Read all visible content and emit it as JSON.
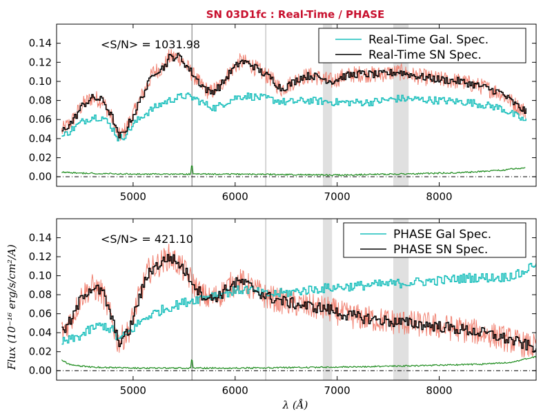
{
  "chart_data": {
    "title": "SN 03D1fc : Real-Time / PHASE",
    "xlabel": "λ (Å)",
    "ylabel": "Flux (10⁻¹⁶ erg/s/cm²/A)",
    "colors": {
      "gal": "#17bebb",
      "sn": "#000000",
      "raw": "#f08070",
      "err": "#1a8a1a",
      "grey": "#e0e0e0"
    },
    "panels": [
      {
        "type": "line",
        "annotation": "<S/N> = 1031.98",
        "xlim": [
          4250,
          8950
        ],
        "ylim": [
          -0.01,
          0.16
        ],
        "xticks": [
          5000,
          6000,
          7000,
          8000
        ],
        "yticks": [
          "0.00",
          "0.02",
          "0.04",
          "0.06",
          "0.08",
          "0.10",
          "0.12",
          "0.14"
        ],
        "legend": [
          "Real-Time Gal. Spec.",
          "Real-Time SN Spec."
        ],
        "legend_position": "top-right",
        "sn_knots": [
          [
            4300,
            0.048
          ],
          [
            4400,
            0.058
          ],
          [
            4500,
            0.075
          ],
          [
            4600,
            0.083
          ],
          [
            4700,
            0.08
          ],
          [
            4800,
            0.06
          ],
          [
            4850,
            0.042
          ],
          [
            4900,
            0.045
          ],
          [
            5000,
            0.065
          ],
          [
            5100,
            0.088
          ],
          [
            5200,
            0.11
          ],
          [
            5300,
            0.115
          ],
          [
            5350,
            0.125
          ],
          [
            5450,
            0.126
          ],
          [
            5550,
            0.112
          ],
          [
            5650,
            0.098
          ],
          [
            5750,
            0.088
          ],
          [
            5850,
            0.095
          ],
          [
            5950,
            0.11
          ],
          [
            6050,
            0.121
          ],
          [
            6150,
            0.118
          ],
          [
            6250,
            0.11
          ],
          [
            6350,
            0.103
          ],
          [
            6450,
            0.092
          ],
          [
            6550,
            0.098
          ],
          [
            6650,
            0.105
          ],
          [
            6750,
            0.106
          ],
          [
            6850,
            0.103
          ],
          [
            6950,
            0.1
          ],
          [
            7050,
            0.105
          ],
          [
            7200,
            0.108
          ],
          [
            7400,
            0.107
          ],
          [
            7600,
            0.11
          ],
          [
            7800,
            0.105
          ],
          [
            8000,
            0.102
          ],
          [
            8200,
            0.1
          ],
          [
            8400,
            0.095
          ],
          [
            8600,
            0.088
          ],
          [
            8750,
            0.075
          ],
          [
            8850,
            0.068
          ]
        ],
        "gal_knots": [
          [
            4300,
            0.042
          ],
          [
            4400,
            0.05
          ],
          [
            4500,
            0.058
          ],
          [
            4600,
            0.063
          ],
          [
            4700,
            0.062
          ],
          [
            4800,
            0.05
          ],
          [
            4850,
            0.04
          ],
          [
            4900,
            0.042
          ],
          [
            5000,
            0.055
          ],
          [
            5100,
            0.065
          ],
          [
            5200,
            0.072
          ],
          [
            5300,
            0.078
          ],
          [
            5400,
            0.082
          ],
          [
            5500,
            0.085
          ],
          [
            5600,
            0.082
          ],
          [
            5700,
            0.076
          ],
          [
            5800,
            0.072
          ],
          [
            5900,
            0.078
          ],
          [
            6000,
            0.083
          ],
          [
            6100,
            0.085
          ],
          [
            6300,
            0.082
          ],
          [
            6500,
            0.078
          ],
          [
            6700,
            0.08
          ],
          [
            7000,
            0.078
          ],
          [
            7300,
            0.078
          ],
          [
            7600,
            0.082
          ],
          [
            8000,
            0.08
          ],
          [
            8300,
            0.078
          ],
          [
            8600,
            0.072
          ],
          [
            8850,
            0.058
          ]
        ],
        "err_knots": [
          [
            4300,
            0.004
          ],
          [
            4500,
            0.003
          ],
          [
            5000,
            0.002
          ],
          [
            6000,
            0.002
          ],
          [
            7000,
            0.001
          ],
          [
            7500,
            0.002
          ],
          [
            8000,
            0.003
          ],
          [
            8300,
            0.004
          ],
          [
            8600,
            0.006
          ],
          [
            8850,
            0.009
          ]
        ],
        "noise": {
          "sn": 0.004,
          "raw": 0.009,
          "gal": 0.004
        }
      },
      {
        "type": "line",
        "annotation": "<S/N> = 421.10",
        "xlim": [
          4250,
          8950
        ],
        "ylim": [
          -0.01,
          0.16
        ],
        "xticks": [
          5000,
          6000,
          7000,
          8000
        ],
        "yticks": [
          "0.00",
          "0.02",
          "0.04",
          "0.06",
          "0.08",
          "0.10",
          "0.12",
          "0.14"
        ],
        "legend": [
          "PHASE Gal Spec.",
          "PHASE SN Spec."
        ],
        "legend_position": "top-right",
        "sn_knots": [
          [
            4300,
            0.04
          ],
          [
            4400,
            0.055
          ],
          [
            4500,
            0.08
          ],
          [
            4600,
            0.088
          ],
          [
            4700,
            0.082
          ],
          [
            4800,
            0.05
          ],
          [
            4850,
            0.03
          ],
          [
            4950,
            0.04
          ],
          [
            5050,
            0.075
          ],
          [
            5150,
            0.105
          ],
          [
            5250,
            0.112
          ],
          [
            5350,
            0.12
          ],
          [
            5450,
            0.112
          ],
          [
            5550,
            0.098
          ],
          [
            5650,
            0.082
          ],
          [
            5750,
            0.075
          ],
          [
            5850,
            0.08
          ],
          [
            5950,
            0.09
          ],
          [
            6050,
            0.094
          ],
          [
            6150,
            0.088
          ],
          [
            6300,
            0.078
          ],
          [
            6500,
            0.072
          ],
          [
            6700,
            0.068
          ],
          [
            6900,
            0.065
          ],
          [
            7100,
            0.058
          ],
          [
            7300,
            0.055
          ],
          [
            7500,
            0.052
          ],
          [
            7700,
            0.05
          ],
          [
            7900,
            0.048
          ],
          [
            8100,
            0.045
          ],
          [
            8300,
            0.042
          ],
          [
            8500,
            0.038
          ],
          [
            8700,
            0.032
          ],
          [
            8900,
            0.025
          ]
        ],
        "gal_knots": [
          [
            4300,
            0.03
          ],
          [
            4400,
            0.033
          ],
          [
            4500,
            0.038
          ],
          [
            4600,
            0.045
          ],
          [
            4700,
            0.048
          ],
          [
            4800,
            0.042
          ],
          [
            4850,
            0.032
          ],
          [
            4950,
            0.04
          ],
          [
            5050,
            0.05
          ],
          [
            5150,
            0.058
          ],
          [
            5300,
            0.065
          ],
          [
            5500,
            0.072
          ],
          [
            5700,
            0.078
          ],
          [
            5900,
            0.082
          ],
          [
            6100,
            0.086
          ],
          [
            6300,
            0.08
          ],
          [
            6500,
            0.082
          ],
          [
            6700,
            0.085
          ],
          [
            7000,
            0.088
          ],
          [
            7300,
            0.09
          ],
          [
            7600,
            0.092
          ],
          [
            8000,
            0.095
          ],
          [
            8300,
            0.098
          ],
          [
            8600,
            0.098
          ],
          [
            8800,
            0.102
          ],
          [
            8950,
            0.115
          ]
        ],
        "err_knots": [
          [
            4250,
            0.02
          ],
          [
            4300,
            0.01
          ],
          [
            4400,
            0.005
          ],
          [
            4600,
            0.003
          ],
          [
            5000,
            0.002
          ],
          [
            6000,
            0.002
          ],
          [
            7000,
            0.003
          ],
          [
            7500,
            0.004
          ],
          [
            8000,
            0.005
          ],
          [
            8400,
            0.006
          ],
          [
            8700,
            0.008
          ],
          [
            8950,
            0.014
          ]
        ],
        "noise": {
          "sn": 0.006,
          "raw": 0.014,
          "gal": 0.005
        }
      }
    ],
    "vlines": [
      5577,
      6300
    ],
    "bands": [
      [
        6860,
        6950
      ],
      [
        7550,
        7700
      ]
    ]
  }
}
